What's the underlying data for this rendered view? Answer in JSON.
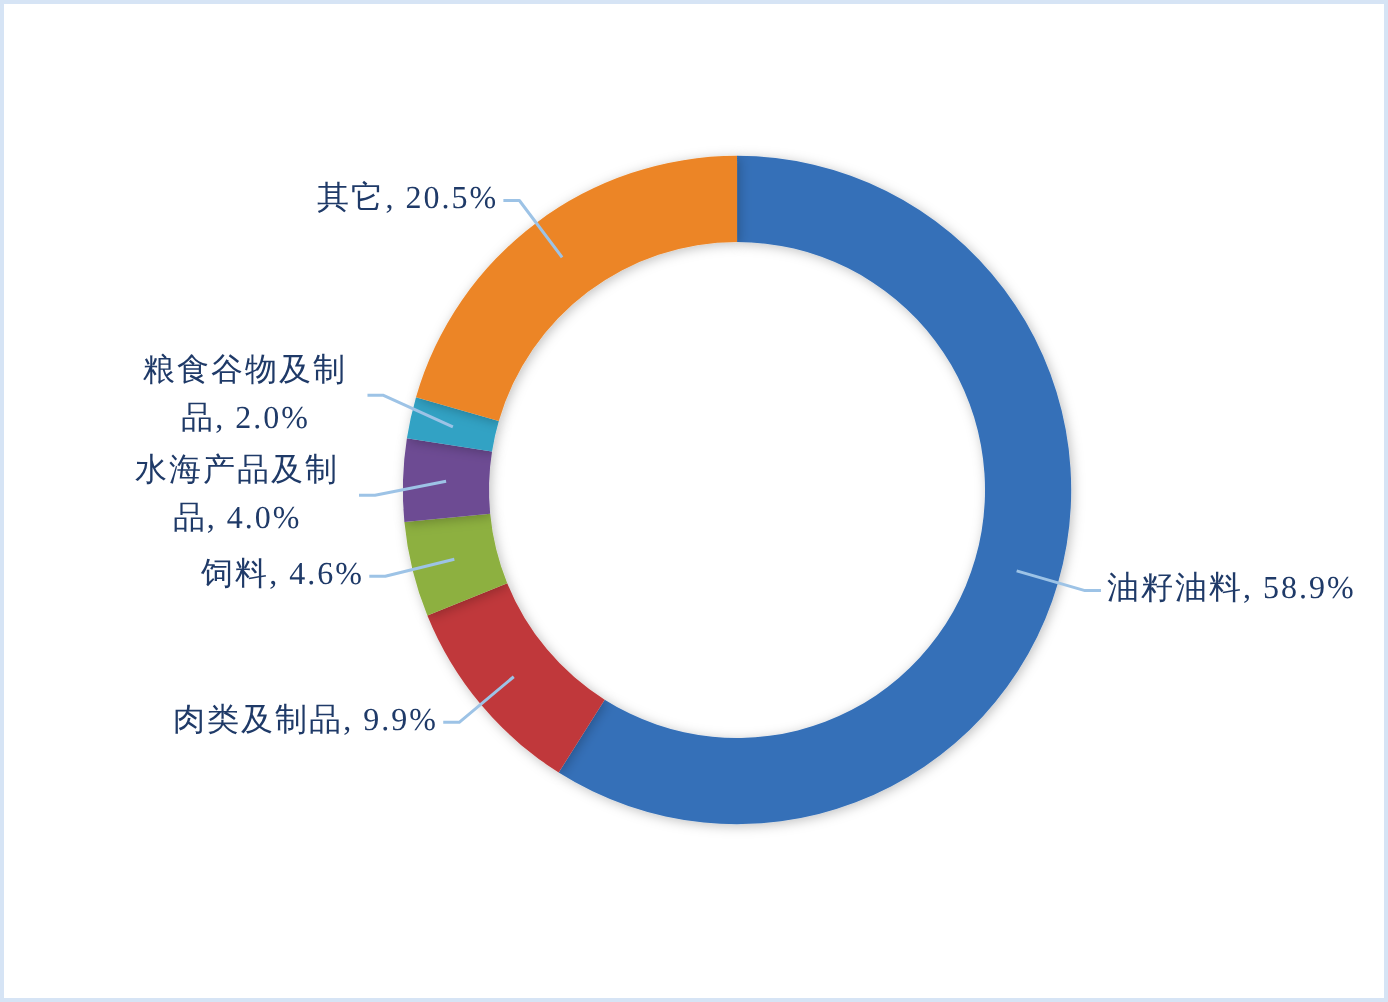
{
  "chart_data": {
    "type": "donut",
    "categories": [
      "油籽油料",
      "肉类及制品",
      "饲料",
      "水海产品及制品",
      "粮食谷物及制品",
      "其它"
    ],
    "values": [
      58.9,
      9.9,
      4.6,
      4.0,
      2.0,
      20.5
    ],
    "value_labels": [
      "58.9%",
      "9.9%",
      "4.6%",
      "4.0%",
      "2.0%",
      "20.5%"
    ],
    "colors": [
      "#3570b8",
      "#c0393a",
      "#8db040",
      "#6d4c93",
      "#32a2c4",
      "#ec8526"
    ]
  }
}
